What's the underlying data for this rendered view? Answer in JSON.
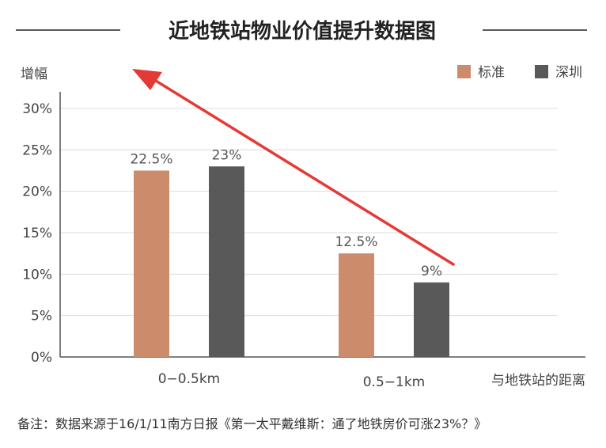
{
  "chart_data": {
    "type": "bar",
    "title": "近地铁站物业价值提升数据图",
    "ylabel": "增幅",
    "xlabel": "与地铁站的距离",
    "categories": [
      "0−0.5km",
      "0.5−1km"
    ],
    "series": [
      {
        "name": "标准",
        "values": [
          22.5,
          12.5
        ],
        "labels": [
          "22.5%",
          "12.5%"
        ],
        "color": "#cc8b6a"
      },
      {
        "name": "深圳",
        "values": [
          23,
          9
        ],
        "labels": [
          "23%",
          "9%"
        ],
        "color": "#5a5959"
      }
    ],
    "ylim": [
      0,
      30
    ],
    "yticks": [
      "0%",
      "5%",
      "10%",
      "15%",
      "20%",
      "25%",
      "30%"
    ],
    "ytick_values": [
      0,
      5,
      10,
      15,
      20,
      25,
      30
    ],
    "grid": true,
    "legend_position": "top-right",
    "arrow_color": "#e53935"
  },
  "note": "备注：数据来源于16/1/11南方日报《第一太平戴维斯：通了地铁房价可涨23%？》"
}
